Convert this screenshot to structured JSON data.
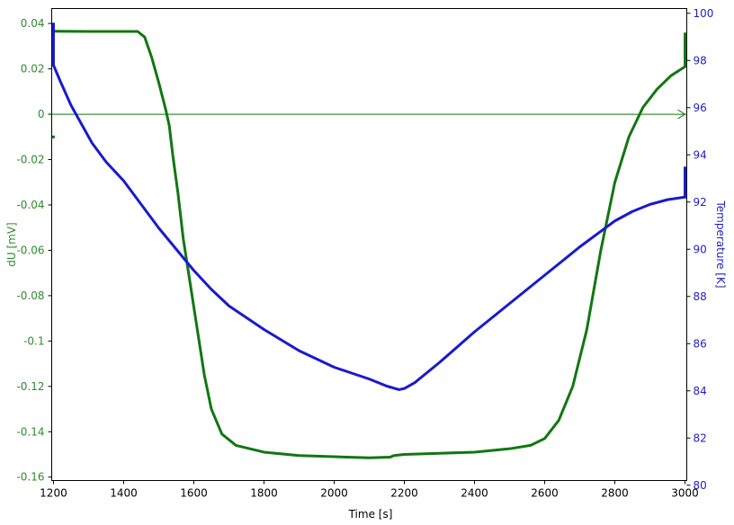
{
  "chart_data": {
    "type": "line",
    "x_axis": {
      "label": "Time [s]",
      "range": [
        1195,
        3005
      ],
      "ticks": [
        1200,
        1400,
        1600,
        1800,
        2000,
        2200,
        2400,
        2600,
        2800,
        3000
      ],
      "tick_labels": [
        "1200",
        "1400",
        "1600",
        "1800",
        "2000",
        "2200",
        "2400",
        "2600",
        "2800",
        "3000"
      ]
    },
    "y_left": {
      "label": "dU [mV]",
      "color": "#2e8b2e",
      "range": [
        -0.1615,
        0.0466
      ],
      "ticks": [
        0.04,
        0.02,
        0,
        -0.02,
        -0.04,
        -0.06,
        -0.08,
        -0.1,
        -0.12,
        -0.14,
        -0.16
      ],
      "tick_labels": [
        "0.04",
        "0.02",
        "0",
        "-0.02",
        "-0.04",
        "-0.06",
        "-0.08",
        "-0.1",
        "-0.12",
        "-0.14",
        "-0.16"
      ]
    },
    "y_right": {
      "label": "Temperature [K]",
      "color": "#1f1fbf",
      "range": [
        80.2,
        100.2
      ],
      "ticks": [
        100,
        98,
        96,
        94,
        92,
        90,
        88,
        86,
        84,
        82,
        80
      ],
      "tick_labels": [
        "100",
        "98",
        "96",
        "94",
        "92",
        "90",
        "88",
        "86",
        "84",
        "82",
        "80"
      ]
    },
    "zero_line": 0,
    "series": [
      {
        "axis": "left",
        "color": "#117711",
        "points": [
          [
            1200,
            -0.01
          ],
          [
            1200,
            0.0366
          ],
          [
            1300,
            0.0365
          ],
          [
            1400,
            0.0365
          ],
          [
            1440,
            0.0365
          ],
          [
            1460,
            0.034
          ],
          [
            1480,
            0.025
          ],
          [
            1500,
            0.014
          ],
          [
            1520,
            0.002
          ],
          [
            1530,
            -0.005
          ],
          [
            1540,
            -0.018
          ],
          [
            1555,
            -0.035
          ],
          [
            1570,
            -0.055
          ],
          [
            1590,
            -0.075
          ],
          [
            1610,
            -0.095
          ],
          [
            1630,
            -0.115
          ],
          [
            1650,
            -0.13
          ],
          [
            1680,
            -0.141
          ],
          [
            1720,
            -0.146
          ],
          [
            1800,
            -0.149
          ],
          [
            1900,
            -0.1505
          ],
          [
            2000,
            -0.151
          ],
          [
            2100,
            -0.1515
          ],
          [
            2160,
            -0.1512
          ],
          [
            2170,
            -0.1505
          ],
          [
            2200,
            -0.15
          ],
          [
            2300,
            -0.1495
          ],
          [
            2400,
            -0.149
          ],
          [
            2500,
            -0.1475
          ],
          [
            2560,
            -0.146
          ],
          [
            2600,
            -0.143
          ],
          [
            2640,
            -0.135
          ],
          [
            2680,
            -0.12
          ],
          [
            2720,
            -0.095
          ],
          [
            2760,
            -0.06
          ],
          [
            2800,
            -0.03
          ],
          [
            2840,
            -0.01
          ],
          [
            2880,
            0.003
          ],
          [
            2920,
            0.011
          ],
          [
            2960,
            0.017
          ],
          [
            3000,
            0.021
          ],
          [
            3000,
            0.036
          ]
        ]
      },
      {
        "axis": "right",
        "color": "#1a1acc",
        "points": [
          [
            1200,
            99.6
          ],
          [
            1200,
            97.8
          ],
          [
            1220,
            97.1
          ],
          [
            1250,
            96.1
          ],
          [
            1280,
            95.3
          ],
          [
            1310,
            94.5
          ],
          [
            1350,
            93.7
          ],
          [
            1400,
            92.9
          ],
          [
            1450,
            91.9
          ],
          [
            1500,
            90.9
          ],
          [
            1550,
            90.0
          ],
          [
            1600,
            89.1
          ],
          [
            1650,
            88.3
          ],
          [
            1700,
            87.6
          ],
          [
            1800,
            86.6
          ],
          [
            1900,
            85.7
          ],
          [
            2000,
            85.0
          ],
          [
            2100,
            84.5
          ],
          [
            2150,
            84.2
          ],
          [
            2185,
            84.05
          ],
          [
            2200,
            84.1
          ],
          [
            2230,
            84.35
          ],
          [
            2300,
            85.2
          ],
          [
            2400,
            86.5
          ],
          [
            2500,
            87.7
          ],
          [
            2600,
            88.9
          ],
          [
            2700,
            90.1
          ],
          [
            2800,
            91.2
          ],
          [
            2850,
            91.6
          ],
          [
            2900,
            91.9
          ],
          [
            2950,
            92.1
          ],
          [
            2995,
            92.2
          ],
          [
            3000,
            92.2
          ],
          [
            3000,
            93.5
          ]
        ]
      }
    ]
  }
}
